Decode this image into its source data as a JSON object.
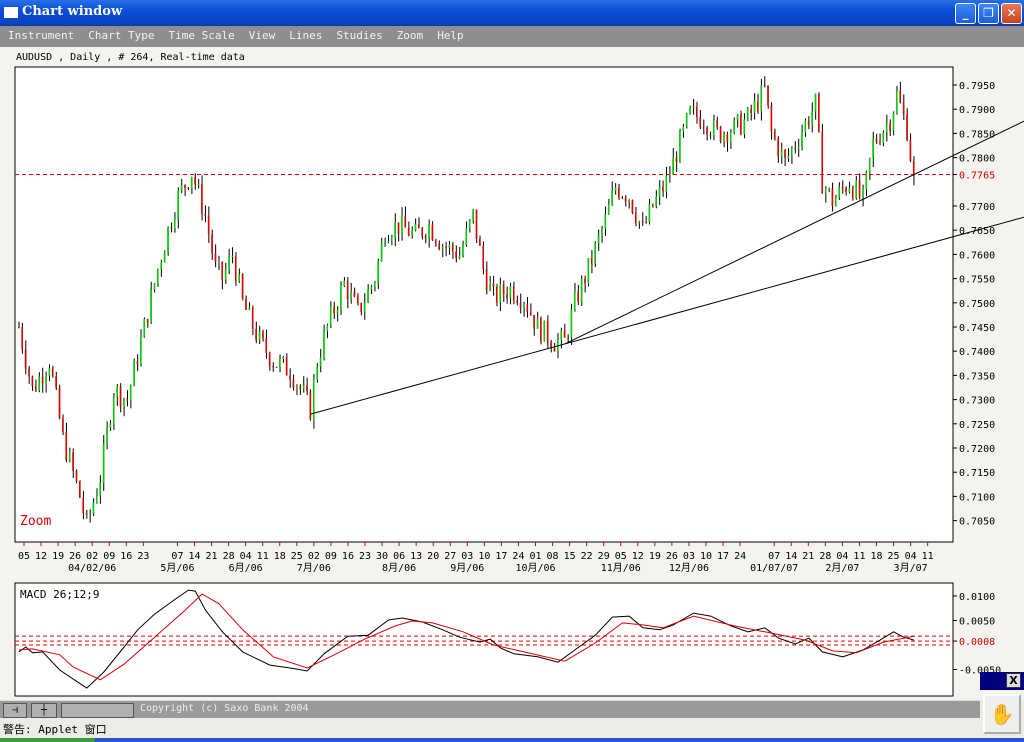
{
  "window": {
    "title": "Chart window",
    "minimize": "_",
    "maximize": "❐",
    "close": "✕"
  },
  "menu": [
    "Instrument",
    "Chart Type",
    "Time Scale",
    "View",
    "Lines",
    "Studies",
    "Zoom",
    "Help"
  ],
  "chart": {
    "info": "AUDUSD , Daily , # 264, Real-time data",
    "zoom_label": "Zoom",
    "macd_label": "MACD 26;12;9",
    "copyright": "Copyright (c) Saxo Bank 2004",
    "status": "警告: Applet 窗口",
    "widget_close": "X"
  },
  "colors": {
    "up": "#00cc00",
    "down": "#dd0000",
    "level": "#dd0000",
    "signal": "#dd0000",
    "macd": "#000000"
  },
  "chart_data": [
    {
      "type": "ohlc",
      "instrument": "AUDUSD",
      "interval": "Daily",
      "bars": 264,
      "ylim": [
        0.701,
        0.799
      ],
      "y_ticks": [
        "0.7950",
        "0.7900",
        "0.7850",
        "0.7800",
        "0.7765",
        "0.7700",
        "0.7650",
        "0.7600",
        "0.7550",
        "0.7500",
        "0.7450",
        "0.7400",
        "0.7350",
        "0.7300",
        "0.7250",
        "0.7200",
        "0.7150",
        "0.7100",
        "0.7050"
      ],
      "x_week_labels": [
        "05",
        "12",
        "19",
        "26",
        "02",
        "09",
        "16",
        "23",
        "",
        "07",
        "14",
        "21",
        "28",
        "04",
        "11",
        "18",
        "25",
        "02",
        "09",
        "16",
        "23",
        "30",
        "06",
        "13",
        "20",
        "27",
        "03",
        "10",
        "17",
        "24",
        "01",
        "08",
        "15",
        "22",
        "29",
        "05",
        "12",
        "19",
        "26",
        "03",
        "10",
        "17",
        "24",
        "",
        "07",
        "14",
        "21",
        "28",
        "04",
        "11",
        "18",
        "25",
        "04",
        "11"
      ],
      "x_month_labels": [
        {
          "label": "04/02/06",
          "week": 4
        },
        {
          "label": "5月/06",
          "week": 9
        },
        {
          "label": "6月/06",
          "week": 13
        },
        {
          "label": "7月/06",
          "week": 17
        },
        {
          "label": "8月/06",
          "week": 22
        },
        {
          "label": "9月/06",
          "week": 26
        },
        {
          "label": "10月/06",
          "week": 30
        },
        {
          "label": "11月/06",
          "week": 35
        },
        {
          "label": "12月/06",
          "week": 39
        },
        {
          "label": "01/07/07",
          "week": 44
        },
        {
          "label": "2月/07",
          "week": 48
        },
        {
          "label": "3月/07",
          "week": 52
        }
      ],
      "horizontal_level": 0.7765,
      "close_path": [
        [
          0,
          0.745
        ],
        [
          4,
          0.732
        ],
        [
          9,
          0.738
        ],
        [
          13,
          0.722
        ],
        [
          18,
          0.71
        ],
        [
          20,
          0.704
        ],
        [
          24,
          0.714
        ],
        [
          28,
          0.732
        ],
        [
          32,
          0.73
        ],
        [
          37,
          0.745
        ],
        [
          41,
          0.757
        ],
        [
          44,
          0.765
        ],
        [
          47,
          0.772
        ],
        [
          51,
          0.777
        ],
        [
          55,
          0.768
        ],
        [
          58,
          0.757
        ],
        [
          60,
          0.755
        ],
        [
          63,
          0.76
        ],
        [
          66,
          0.75
        ],
        [
          71,
          0.742
        ],
        [
          75,
          0.738
        ],
        [
          80,
          0.736
        ],
        [
          84,
          0.731
        ],
        [
          86,
          0.728
        ],
        [
          88,
          0.738
        ],
        [
          91,
          0.745
        ],
        [
          96,
          0.754
        ],
        [
          100,
          0.748
        ],
        [
          105,
          0.755
        ],
        [
          108,
          0.765
        ],
        [
          112,
          0.766
        ],
        [
          117,
          0.764
        ],
        [
          121,
          0.766
        ],
        [
          125,
          0.762
        ],
        [
          130,
          0.76
        ],
        [
          134,
          0.768
        ],
        [
          137,
          0.757
        ],
        [
          140,
          0.751
        ],
        [
          145,
          0.753
        ],
        [
          149,
          0.751
        ],
        [
          153,
          0.745
        ],
        [
          158,
          0.742
        ],
        [
          161,
          0.742
        ],
        [
          164,
          0.75
        ],
        [
          168,
          0.757
        ],
        [
          173,
          0.767
        ],
        [
          176,
          0.774
        ],
        [
          180,
          0.772
        ],
        [
          184,
          0.765
        ],
        [
          187,
          0.77
        ],
        [
          191,
          0.775
        ],
        [
          194,
          0.781
        ],
        [
          198,
          0.789
        ],
        [
          202,
          0.788
        ],
        [
          206,
          0.785
        ],
        [
          211,
          0.786
        ],
        [
          215,
          0.788
        ],
        [
          220,
          0.794
        ],
        [
          222,
          0.785
        ],
        [
          226,
          0.779
        ],
        [
          229,
          0.783
        ],
        [
          232,
          0.787
        ],
        [
          235,
          0.791
        ],
        [
          237,
          0.775
        ],
        [
          240,
          0.771
        ],
        [
          245,
          0.775
        ],
        [
          249,
          0.771
        ],
        [
          252,
          0.783
        ],
        [
          257,
          0.788
        ],
        [
          259,
          0.793
        ],
        [
          262,
          0.786
        ],
        [
          264,
          0.775
        ]
      ],
      "trend_lines": [
        {
          "from": [
            86,
            0.727
          ],
          "to": [
            161,
            0.7415
          ]
        },
        {
          "from": [
            161,
            0.7415
          ],
          "to": [
            264,
            0.7765
          ]
        }
      ]
    },
    {
      "type": "line",
      "title": "MACD 26;12;9",
      "y_ticks": [
        "0.0100",
        "0.0050",
        "0.0008",
        "-0.0050"
      ],
      "dashed_levels": [
        0.0018,
        0.0008,
        0.0
      ],
      "series": [
        {
          "name": "MACD",
          "color": "#000000",
          "points": [
            [
              0,
              -0.0014
            ],
            [
              2,
              -0.0004
            ],
            [
              4,
              -0.0016
            ],
            [
              7,
              -0.0014
            ],
            [
              12,
              -0.0051
            ],
            [
              20,
              -0.0088
            ],
            [
              25,
              -0.0055
            ],
            [
              31,
              -0.0004
            ],
            [
              35,
              0.0031
            ],
            [
              40,
              0.0063
            ],
            [
              47,
              0.0098
            ],
            [
              50,
              0.0112
            ],
            [
              52,
              0.011
            ],
            [
              55,
              0.0071
            ],
            [
              60,
              0.0027
            ],
            [
              66,
              -0.0014
            ],
            [
              74,
              -0.0041
            ],
            [
              80,
              -0.0047
            ],
            [
              85,
              -0.0053
            ],
            [
              90,
              -0.0018
            ],
            [
              97,
              0.0018
            ],
            [
              103,
              0.002
            ],
            [
              109,
              0.0051
            ],
            [
              113,
              0.0055
            ],
            [
              119,
              0.0047
            ],
            [
              125,
              0.0031
            ],
            [
              130,
              0.0016
            ],
            [
              136,
              0.0006
            ],
            [
              139,
              0.0012
            ],
            [
              142,
              -0.0006
            ],
            [
              146,
              -0.0018
            ],
            [
              153,
              -0.0024
            ],
            [
              159,
              -0.0035
            ],
            [
              164,
              -0.001
            ],
            [
              170,
              0.002
            ],
            [
              175,
              0.0057
            ],
            [
              180,
              0.0059
            ],
            [
              184,
              0.0035
            ],
            [
              189,
              0.0031
            ],
            [
              193,
              0.0041
            ],
            [
              199,
              0.0065
            ],
            [
              204,
              0.0059
            ],
            [
              210,
              0.0039
            ],
            [
              215,
              0.0027
            ],
            [
              220,
              0.0035
            ],
            [
              224,
              0.0014
            ],
            [
              229,
              0.0002
            ],
            [
              233,
              0.0014
            ],
            [
              237,
              -0.0014
            ],
            [
              243,
              -0.0024
            ],
            [
              249,
              -0.001
            ],
            [
              254,
              0.001
            ],
            [
              258,
              0.0027
            ],
            [
              261,
              0.0016
            ],
            [
              264,
              0.001
            ]
          ]
        },
        {
          "name": "Signal",
          "color": "#dd0000",
          "points": [
            [
              0,
              -0.001
            ],
            [
              4,
              -0.0008
            ],
            [
              12,
              -0.002
            ],
            [
              16,
              -0.0045
            ],
            [
              24,
              -0.0071
            ],
            [
              31,
              -0.0039
            ],
            [
              40,
              0.0016
            ],
            [
              49,
              0.0071
            ],
            [
              54,
              0.0104
            ],
            [
              59,
              0.0084
            ],
            [
              66,
              0.0031
            ],
            [
              75,
              -0.0024
            ],
            [
              85,
              -0.0047
            ],
            [
              93,
              -0.002
            ],
            [
              102,
              0.0012
            ],
            [
              111,
              0.0039
            ],
            [
              116,
              0.0049
            ],
            [
              122,
              0.0045
            ],
            [
              131,
              0.0027
            ],
            [
              140,
              0.0
            ],
            [
              149,
              -0.0014
            ],
            [
              161,
              -0.0033
            ],
            [
              170,
              0.0004
            ],
            [
              178,
              0.0045
            ],
            [
              184,
              0.0041
            ],
            [
              190,
              0.0035
            ],
            [
              199,
              0.0059
            ],
            [
              211,
              0.0039
            ],
            [
              220,
              0.0027
            ],
            [
              232,
              0.001
            ],
            [
              240,
              -0.0012
            ],
            [
              247,
              -0.0016
            ],
            [
              255,
              0.0006
            ],
            [
              264,
              0.0018
            ]
          ]
        }
      ]
    }
  ]
}
